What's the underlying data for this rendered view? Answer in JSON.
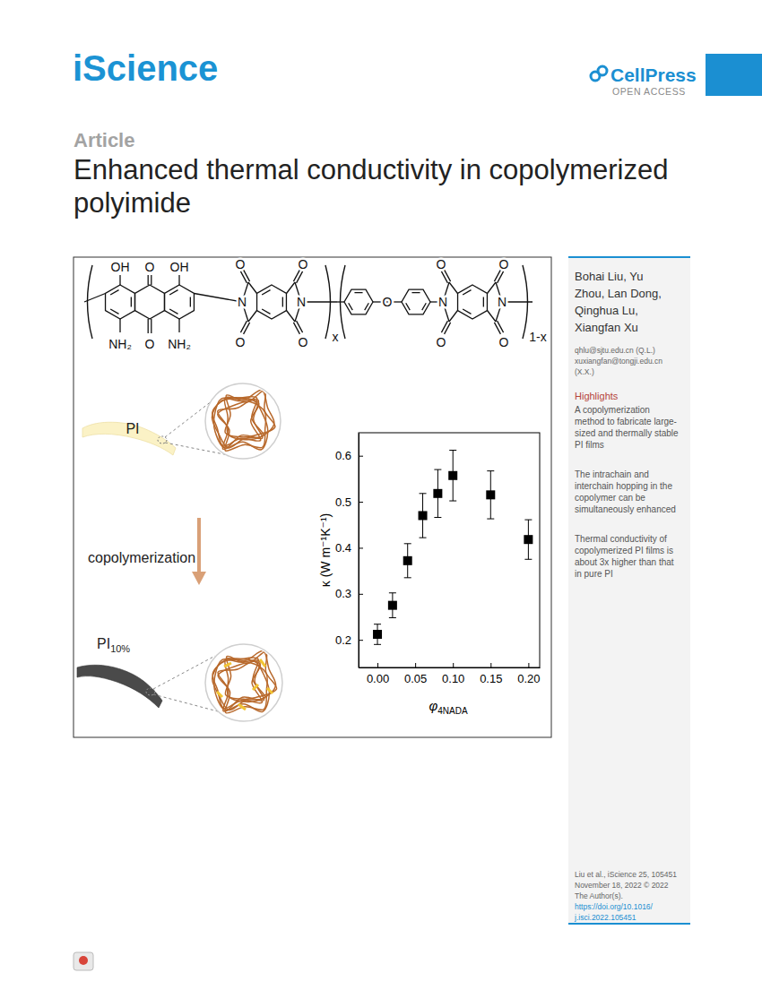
{
  "header": {
    "journal": "iScience",
    "publisher": "CellPress",
    "access": "OPEN ACCESS",
    "article_type": "Article",
    "title_lines": [
      "Enhanced thermal conductivity in copolymerized",
      "polyimide"
    ]
  },
  "structure": {
    "labels": [
      "OH",
      "O",
      "OH",
      "NH₂",
      "O",
      "NH₂",
      "O",
      "O",
      "N",
      "O",
      "O",
      "N",
      "x",
      "O",
      "O",
      "O",
      "N",
      "O",
      "O",
      "N",
      "1-x"
    ]
  },
  "illustration": {
    "top_label": "PI",
    "process": "copolymerization",
    "bottom_label": {
      "main": "PI",
      "subscript": "10%"
    }
  },
  "chart_data": {
    "type": "scatter",
    "x": [
      0,
      0.02,
      0.04,
      0.06,
      0.08,
      0.1,
      0.15,
      0.2
    ],
    "values": [
      0.212,
      0.275,
      0.372,
      0.47,
      0.518,
      0.557,
      0.515,
      0.418
    ],
    "errors": [
      0.022,
      0.027,
      0.037,
      0.048,
      0.052,
      0.055,
      0.052,
      0.043
    ],
    "xlim": [
      -0.025,
      0.215
    ],
    "xticks": [
      {
        "value": 0,
        "label": "0.00"
      },
      {
        "value": 0.05,
        "label": "0.05"
      },
      {
        "value": 0.1,
        "label": "0.10"
      },
      {
        "value": 0.15,
        "label": "0.15"
      },
      {
        "value": 0.2,
        "label": "0.20"
      }
    ],
    "ylim": [
      0.14,
      0.65
    ],
    "yticks": [
      0.2,
      0.3,
      0.4,
      0.5,
      0.6
    ],
    "xlabel": {
      "symbol": "φ",
      "subscript": "4NADA"
    },
    "ylabel": "κ (W m⁻¹K⁻¹)",
    "color": "#000000",
    "marker": "square",
    "grid": false
  },
  "sidebar": {
    "authors": [
      "Bohai Liu, Yu",
      "Zhou, Lan Dong,",
      "Qinghua Lu,",
      "Xiangfan Xu"
    ],
    "emails": [
      "qhlu@sjtu.edu.cn (Q.L.)",
      "xuxiangfan@tongji.edu.cn",
      "(X.X.)"
    ],
    "highlights_title": "Highlights",
    "highlights": [
      [
        "A copolymerization",
        "method to fabricate large-",
        "sized and thermally stable",
        "PI films"
      ],
      [
        "The intrachain and",
        "interchain hopping in the",
        "copolymer can be",
        "simultaneously enhanced"
      ],
      [
        "Thermal conductivity of",
        "copolymerized PI films is",
        "about 3x higher than that",
        "in pure PI"
      ]
    ],
    "citation": [
      "Liu et al., iScience 25, 105451",
      "November 18, 2022 © 2022",
      "The Author(s)."
    ],
    "doi": [
      "https://doi.org/10.1016/",
      "j.isci.2022.105451"
    ]
  }
}
